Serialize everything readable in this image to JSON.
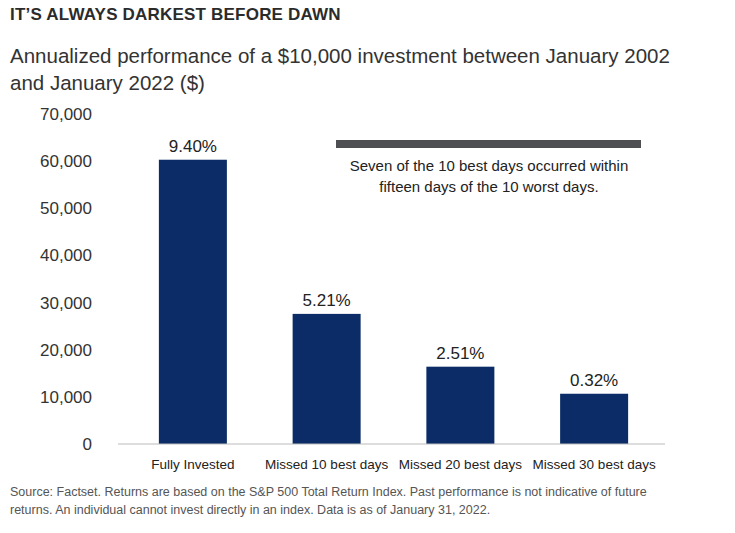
{
  "chart_data": {
    "type": "bar",
    "title": "IT’S ALWAYS DARKEST BEFORE DAWN",
    "subtitle": "Annualized performance of a $10,000 investment between January 2002 and January 2022 ($)",
    "categories": [
      "Fully Invested",
      "Missed 10 best days",
      "Missed 20 best days",
      "Missed 30 best days"
    ],
    "values": [
      60300,
      27600,
      16400,
      10660
    ],
    "annualized_returns": [
      "9.40%",
      "5.21%",
      "2.51%",
      "0.32%"
    ],
    "color": "#0b2c66",
    "ylim": [
      0,
      70000
    ],
    "yticks": [
      0,
      {
        "value": 10000,
        "label": "10,000"
      },
      {
        "value": 20000,
        "label": "20,000"
      },
      {
        "value": 30000,
        "label": "30,000"
      },
      {
        "value": 40000,
        "label": "40,000"
      },
      {
        "value": 50000,
        "label": "50,000"
      },
      {
        "value": 60000,
        "label": "60,000"
      },
      {
        "value": 70000,
        "label": "70,000"
      }
    ],
    "grid": false,
    "annotation": "Seven of the 10 best days occurred within fifteen days of the 10 worst days.",
    "source": "Source: Factset. Returns are based on the S&P 500 Total Return Index. Past performance is not indicative of future returns. An individual cannot invest directly in an index. Data is as of January 31, 2022."
  }
}
